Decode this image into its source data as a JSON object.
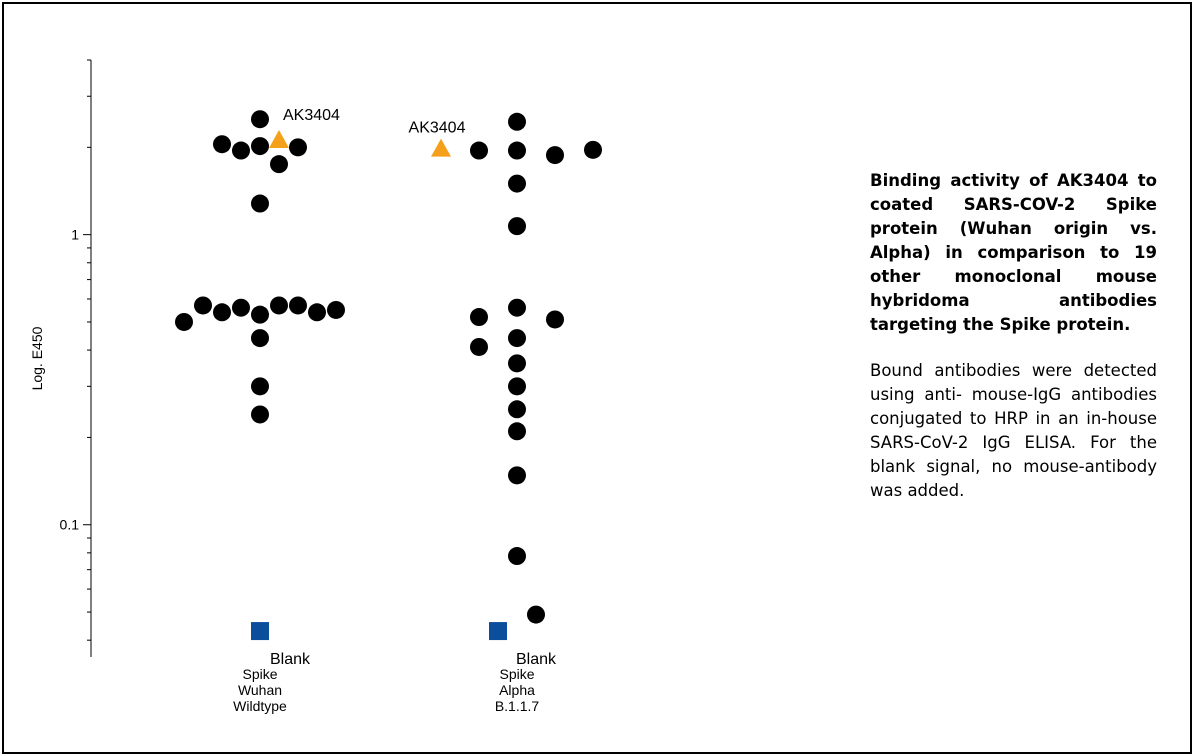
{
  "chart_data": {
    "type": "scatter",
    "ylabel": "Log. E450",
    "yscale": "log",
    "ylim": [
      0.035,
      4
    ],
    "yticks": [
      {
        "value": 1,
        "label": "1"
      },
      {
        "value": 0.1,
        "label": "0.1"
      }
    ],
    "categories": [
      {
        "label_lines": [
          "Spike",
          "Wuhan",
          "Wildtype"
        ]
      },
      {
        "label_lines": [
          "Spike",
          "Alpha",
          "B.1.1.7"
        ]
      }
    ],
    "series": [
      {
        "category": 0,
        "marker": "circle",
        "color": "#000000",
        "points": [
          {
            "offset": 0,
            "y": 2.5
          },
          {
            "offset": -2,
            "y": 2.05
          },
          {
            "offset": -1,
            "y": 1.95
          },
          {
            "offset": 0,
            "y": 2.02
          },
          {
            "offset": 1,
            "y": 1.75
          },
          {
            "offset": 2,
            "y": 2.0
          },
          {
            "offset": 0,
            "y": 1.28
          },
          {
            "offset": -4,
            "y": 0.5
          },
          {
            "offset": -3,
            "y": 0.57
          },
          {
            "offset": -2,
            "y": 0.54
          },
          {
            "offset": -1,
            "y": 0.56
          },
          {
            "offset": 0,
            "y": 0.53
          },
          {
            "offset": 1,
            "y": 0.57
          },
          {
            "offset": 2,
            "y": 0.57
          },
          {
            "offset": 3,
            "y": 0.54
          },
          {
            "offset": 4,
            "y": 0.55
          },
          {
            "offset": 0,
            "y": 0.44
          },
          {
            "offset": 0,
            "y": 0.3
          },
          {
            "offset": 0,
            "y": 0.24
          }
        ]
      },
      {
        "category": 1,
        "marker": "circle",
        "color": "#000000",
        "points": [
          {
            "offset": 0,
            "y": 2.45
          },
          {
            "offset": -2,
            "y": 1.95
          },
          {
            "offset": 0,
            "y": 1.95
          },
          {
            "offset": 2,
            "y": 1.88
          },
          {
            "offset": 4,
            "y": 1.96
          },
          {
            "offset": 0,
            "y": 1.5
          },
          {
            "offset": 0,
            "y": 1.07
          },
          {
            "offset": -2,
            "y": 0.52
          },
          {
            "offset": 0,
            "y": 0.56
          },
          {
            "offset": 2,
            "y": 0.51
          },
          {
            "offset": -2,
            "y": 0.41
          },
          {
            "offset": 0,
            "y": 0.44
          },
          {
            "offset": 0,
            "y": 0.36
          },
          {
            "offset": 0,
            "y": 0.3
          },
          {
            "offset": 0,
            "y": 0.25
          },
          {
            "offset": 0,
            "y": 0.21
          },
          {
            "offset": 0,
            "y": 0.148
          },
          {
            "offset": 0,
            "y": 0.078
          },
          {
            "offset": 1,
            "y": 0.049
          }
        ]
      }
    ],
    "highlights": [
      {
        "category": 0,
        "offset": 1,
        "y": 2.12,
        "marker": "triangle",
        "color": "#F5A01A",
        "label": "AK3404",
        "label_side": "right"
      },
      {
        "category": 1,
        "offset": -4,
        "y": 1.98,
        "marker": "triangle",
        "color": "#F5A01A",
        "label": "AK3404",
        "label_side": "above"
      }
    ],
    "blanks": [
      {
        "category": 0,
        "offset": 0,
        "y": 0.043,
        "marker": "square",
        "color": "#0B4F9C",
        "label": "Blank"
      },
      {
        "category": 1,
        "offset": -1,
        "y": 0.043,
        "marker": "square",
        "color": "#0B4F9C",
        "label": "Blank"
      }
    ],
    "grid": false,
    "legend": "none"
  },
  "caption": {
    "title": "Binding activity of AK3404 to coated SARS-COV-2 Spike protein (Wuhan origin vs. Alpha) in comparison to 19 other monoclonal mouse hybridoma antibodies targeting the Spike protein.",
    "body": "Bound antibodies were detected using anti- mouse-IgG antibodies conjugated to HRP in an in-house SARS-CoV-2 IgG ELISA. For the blank signal, no mouse-antibody was added."
  }
}
